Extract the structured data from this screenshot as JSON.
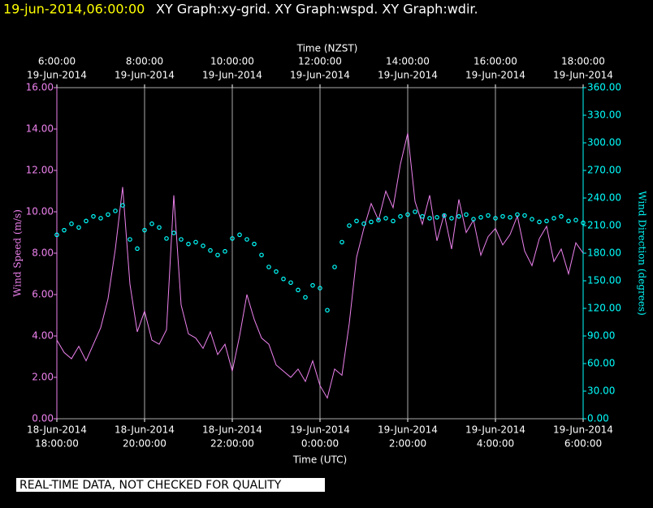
{
  "chart_data": {
    "type": "xy",
    "title": "19-jun-2014,06:00:00",
    "subtitle": "XY Graph:xy-grid.  XY Graph:wspd.  XY Graph:wdir.",
    "x2_label": "Time (NZST)",
    "x_label": "Time (UTC)",
    "y_label": "Wind Speed (m/s)",
    "y2_label": "Wind Direction (degrees)",
    "footer": "REAL-TIME DATA, NOT CHECKED FOR QUALITY",
    "grid": true,
    "xlim": [
      "2014-06-18T18:00:00",
      "2014-06-19T06:00:00"
    ],
    "xticks": [
      {
        "value": "2014-06-18T18:00:00",
        "label": [
          "18-Jun-2014",
          "18:00:00"
        ]
      },
      {
        "value": "2014-06-18T20:00:00",
        "label": [
          "18-Jun-2014",
          "20:00:00"
        ]
      },
      {
        "value": "2014-06-18T22:00:00",
        "label": [
          "18-Jun-2014",
          "22:00:00"
        ]
      },
      {
        "value": "2014-06-19T00:00:00",
        "label": [
          "19-Jun-2014",
          "0:00:00"
        ]
      },
      {
        "value": "2014-06-19T02:00:00",
        "label": [
          "19-Jun-2014",
          "2:00:00"
        ]
      },
      {
        "value": "2014-06-19T04:00:00",
        "label": [
          "19-Jun-2014",
          "4:00:00"
        ]
      },
      {
        "value": "2014-06-19T06:00:00",
        "label": [
          "19-Jun-2014",
          "6:00:00"
        ]
      }
    ],
    "x2ticks": [
      {
        "value": "2014-06-18T18:00:00",
        "label": [
          "6:00:00",
          "19-Jun-2014"
        ]
      },
      {
        "value": "2014-06-18T20:00:00",
        "label": [
          "8:00:00",
          "19-Jun-2014"
        ]
      },
      {
        "value": "2014-06-18T22:00:00",
        "label": [
          "10:00:00",
          "19-Jun-2014"
        ]
      },
      {
        "value": "2014-06-19T00:00:00",
        "label": [
          "12:00:00",
          "19-Jun-2014"
        ]
      },
      {
        "value": "2014-06-19T02:00:00",
        "label": [
          "14:00:00",
          "19-Jun-2014"
        ]
      },
      {
        "value": "2014-06-19T04:00:00",
        "label": [
          "16:00:00",
          "19-Jun-2014"
        ]
      },
      {
        "value": "2014-06-19T06:00:00",
        "label": [
          "18:00:00",
          "19-Jun-2014"
        ]
      }
    ],
    "ylim": [
      0,
      16
    ],
    "yticks": [
      {
        "value": 0,
        "label": "0.00"
      },
      {
        "value": 2,
        "label": "2.00"
      },
      {
        "value": 4,
        "label": "4.00"
      },
      {
        "value": 6,
        "label": "6.00"
      },
      {
        "value": 8,
        "label": "8.00"
      },
      {
        "value": 10,
        "label": "10.00"
      },
      {
        "value": 12,
        "label": "12.00"
      },
      {
        "value": 14,
        "label": "14.00"
      },
      {
        "value": 16,
        "label": "16.00"
      }
    ],
    "y2lim": [
      0,
      360
    ],
    "y2ticks": [
      {
        "value": 0,
        "label": "0.00"
      },
      {
        "value": 30,
        "label": "30.00"
      },
      {
        "value": 60,
        "label": "60.00"
      },
      {
        "value": 90,
        "label": "90.00"
      },
      {
        "value": 120,
        "label": "120.00"
      },
      {
        "value": 150,
        "label": "150.00"
      },
      {
        "value": 180,
        "label": "180.00"
      },
      {
        "value": 210,
        "label": "210.00"
      },
      {
        "value": 240,
        "label": "240.00"
      },
      {
        "value": 270,
        "label": "270.00"
      },
      {
        "value": 300,
        "label": "300.00"
      },
      {
        "value": 330,
        "label": "330.00"
      },
      {
        "value": 360,
        "label": "360.00"
      }
    ],
    "x": [
      "2014-06-18T18:00:00",
      "2014-06-18T18:10:00",
      "2014-06-18T18:20:00",
      "2014-06-18T18:30:00",
      "2014-06-18T18:40:00",
      "2014-06-18T18:50:00",
      "2014-06-18T19:00:00",
      "2014-06-18T19:10:00",
      "2014-06-18T19:20:00",
      "2014-06-18T19:30:00",
      "2014-06-18T19:40:00",
      "2014-06-18T19:50:00",
      "2014-06-18T20:00:00",
      "2014-06-18T20:10:00",
      "2014-06-18T20:20:00",
      "2014-06-18T20:30:00",
      "2014-06-18T20:40:00",
      "2014-06-18T20:50:00",
      "2014-06-18T21:00:00",
      "2014-06-18T21:10:00",
      "2014-06-18T21:20:00",
      "2014-06-18T21:30:00",
      "2014-06-18T21:40:00",
      "2014-06-18T21:50:00",
      "2014-06-18T22:00:00",
      "2014-06-18T22:10:00",
      "2014-06-18T22:20:00",
      "2014-06-18T22:30:00",
      "2014-06-18T22:40:00",
      "2014-06-18T22:50:00",
      "2014-06-18T23:00:00",
      "2014-06-18T23:10:00",
      "2014-06-18T23:20:00",
      "2014-06-18T23:30:00",
      "2014-06-18T23:40:00",
      "2014-06-18T23:50:00",
      "2014-06-19T00:00:00",
      "2014-06-19T00:10:00",
      "2014-06-19T00:20:00",
      "2014-06-19T00:30:00",
      "2014-06-19T00:40:00",
      "2014-06-19T00:50:00",
      "2014-06-19T01:00:00",
      "2014-06-19T01:10:00",
      "2014-06-19T01:20:00",
      "2014-06-19T01:30:00",
      "2014-06-19T01:40:00",
      "2014-06-19T01:50:00",
      "2014-06-19T02:00:00",
      "2014-06-19T02:10:00",
      "2014-06-19T02:20:00",
      "2014-06-19T02:30:00",
      "2014-06-19T02:40:00",
      "2014-06-19T02:50:00",
      "2014-06-19T03:00:00",
      "2014-06-19T03:10:00",
      "2014-06-19T03:20:00",
      "2014-06-19T03:30:00",
      "2014-06-19T03:40:00",
      "2014-06-19T03:50:00",
      "2014-06-19T04:00:00",
      "2014-06-19T04:10:00",
      "2014-06-19T04:20:00",
      "2014-06-19T04:30:00",
      "2014-06-19T04:40:00",
      "2014-06-19T04:50:00",
      "2014-06-19T05:00:00",
      "2014-06-19T05:10:00",
      "2014-06-19T05:20:00",
      "2014-06-19T05:30:00",
      "2014-06-19T05:40:00",
      "2014-06-19T05:50:00",
      "2014-06-19T06:00:00"
    ],
    "series": [
      {
        "type": "line",
        "color": "#ee82ee",
        "values": [
          3.8,
          3.2,
          2.9,
          3.5,
          2.8,
          3.6,
          4.4,
          5.8,
          8.2,
          11.2,
          6.5,
          4.2,
          5.2,
          3.8,
          3.6,
          4.3,
          10.8,
          5.5,
          4.1,
          3.9,
          3.4,
          4.2,
          3.1,
          3.6,
          2.3,
          4.0,
          6.0,
          4.8,
          3.9,
          3.6,
          2.6,
          2.3,
          2.0,
          2.4,
          1.8,
          2.8,
          1.6,
          1.0,
          2.4,
          2.1,
          4.6,
          7.8,
          9.2,
          10.4,
          9.6,
          11.0,
          10.2,
          12.3,
          13.8,
          10.5,
          9.4,
          10.8,
          8.6,
          9.9,
          8.2,
          10.6,
          9.0,
          9.6,
          7.9,
          8.8,
          9.2,
          8.4,
          8.9,
          9.8,
          8.1,
          7.4,
          8.7,
          9.3,
          7.6,
          8.2,
          7.0,
          8.5,
          8.0
        ]
      },
      {
        "type": "scatter",
        "axis": "y2",
        "color": "#00ffff",
        "values": [
          200,
          205,
          212,
          208,
          215,
          220,
          218,
          222,
          226,
          232,
          195,
          185,
          205,
          212,
          208,
          196,
          202,
          195,
          190,
          192,
          188,
          183,
          178,
          182,
          196,
          200,
          195,
          190,
          178,
          165,
          160,
          152,
          148,
          140,
          132,
          145,
          142,
          118,
          165,
          192,
          210,
          215,
          212,
          214,
          216,
          218,
          215,
          220,
          222,
          225,
          220,
          218,
          219,
          221,
          218,
          220,
          222,
          217,
          219,
          221,
          218,
          220,
          219,
          222,
          221,
          217,
          214,
          215,
          218,
          220,
          215,
          216,
          213
        ]
      }
    ]
  }
}
